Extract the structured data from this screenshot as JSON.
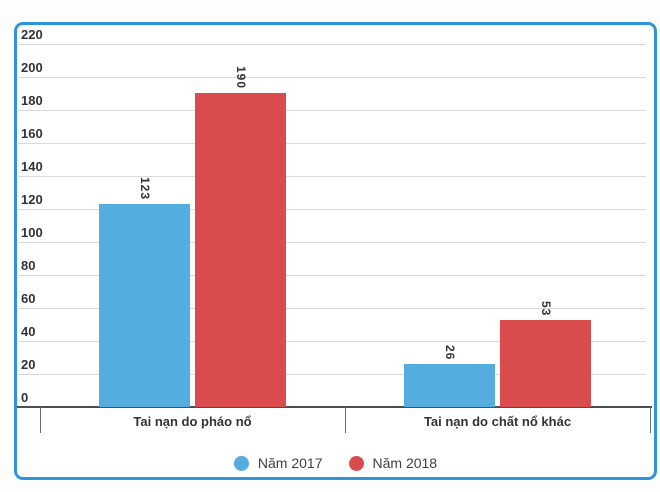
{
  "chart_data": {
    "type": "bar",
    "orientation": "vertical-grouped-columns",
    "title": "",
    "xlabel": "",
    "ylabel": "",
    "categories": [
      "Tai nạn do pháo nổ",
      "Tai nạn do chất nổ khác"
    ],
    "series": [
      {
        "name": "Năm 2017",
        "color": "#55acdf",
        "values": [
          123,
          26
        ]
      },
      {
        "name": "Năm 2018",
        "color": "#d94b4c",
        "values": [
          190,
          53
        ]
      }
    ],
    "ylim": [
      0,
      220
    ],
    "yticks": [
      0,
      20,
      40,
      60,
      80,
      100,
      120,
      140,
      160,
      180,
      200,
      220
    ],
    "grid": true,
    "legend_position": "bottom",
    "data_labels": "rotated-vertical-above-bars"
  },
  "colors": {
    "card_border": "#2e96d8",
    "card_background": "#ffffff",
    "page_background": "#fdfdfd",
    "gridline": "#d9d9d9",
    "axis_line": "#4d4d4d",
    "tick": "#6b6b6b",
    "axis_label_text": "#333333",
    "value_label_text": "#333333",
    "category_label_text": "#333333",
    "legend_text": "#404040"
  }
}
